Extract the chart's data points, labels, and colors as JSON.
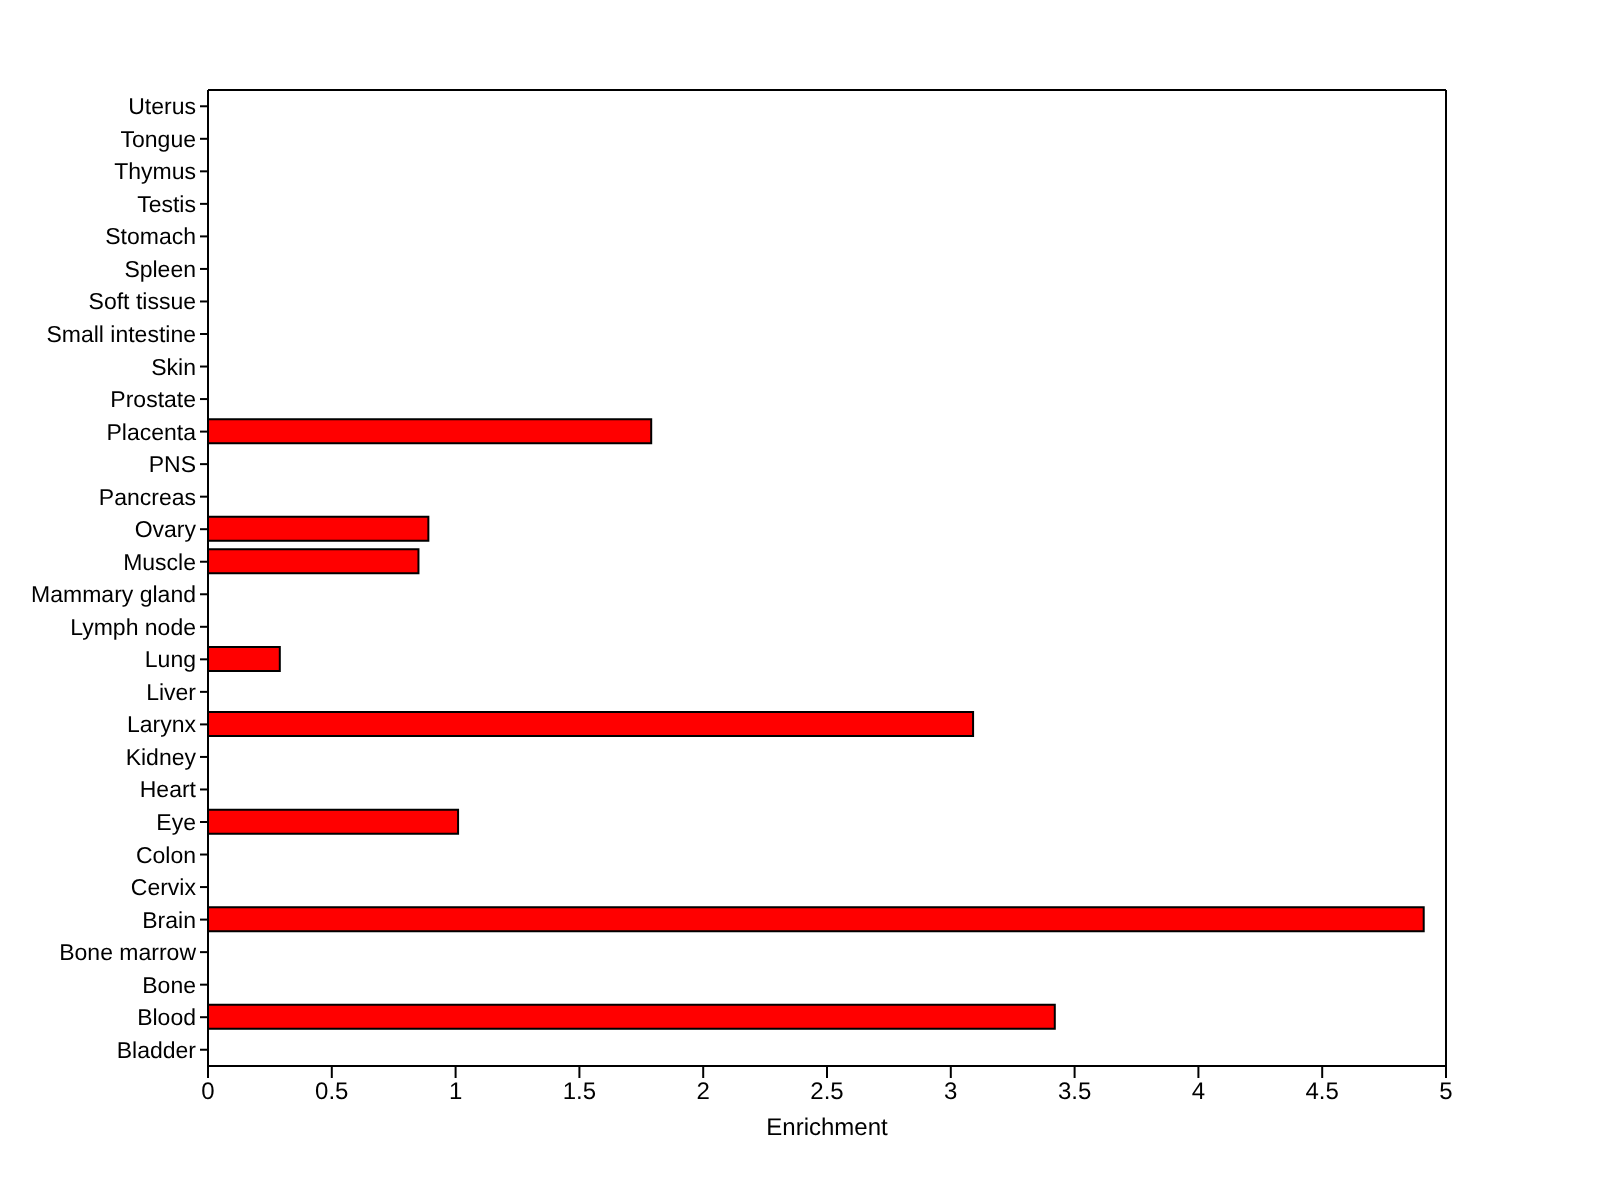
{
  "chart_data": {
    "type": "bar",
    "orientation": "horizontal",
    "xlabel": "Enrichment",
    "categories": [
      "Uterus",
      "Tongue",
      "Thymus",
      "Testis",
      "Stomach",
      "Spleen",
      "Soft tissue",
      "Small intestine",
      "Skin",
      "Prostate",
      "Placenta",
      "PNS",
      "Pancreas",
      "Ovary",
      "Muscle",
      "Mammary gland",
      "Lymph node",
      "Lung",
      "Liver",
      "Larynx",
      "Kidney",
      "Heart",
      "Eye",
      "Colon",
      "Cervix",
      "Brain",
      "Bone marrow",
      "Bone",
      "Blood",
      "Bladder"
    ],
    "values": [
      0,
      0,
      0,
      0,
      0,
      0,
      0,
      0,
      0,
      0,
      1.79,
      0,
      0,
      0.89,
      0.85,
      0,
      0,
      0.29,
      0,
      3.09,
      0,
      0,
      1.01,
      0,
      0,
      4.91,
      0,
      0,
      3.42,
      0
    ],
    "color": "#ff0000",
    "xlim": [
      0,
      5
    ],
    "xticks": [
      0,
      0.5,
      1,
      1.5,
      2,
      2.5,
      3,
      3.5,
      4,
      4.5,
      5
    ],
    "grid": false,
    "legend": false
  }
}
